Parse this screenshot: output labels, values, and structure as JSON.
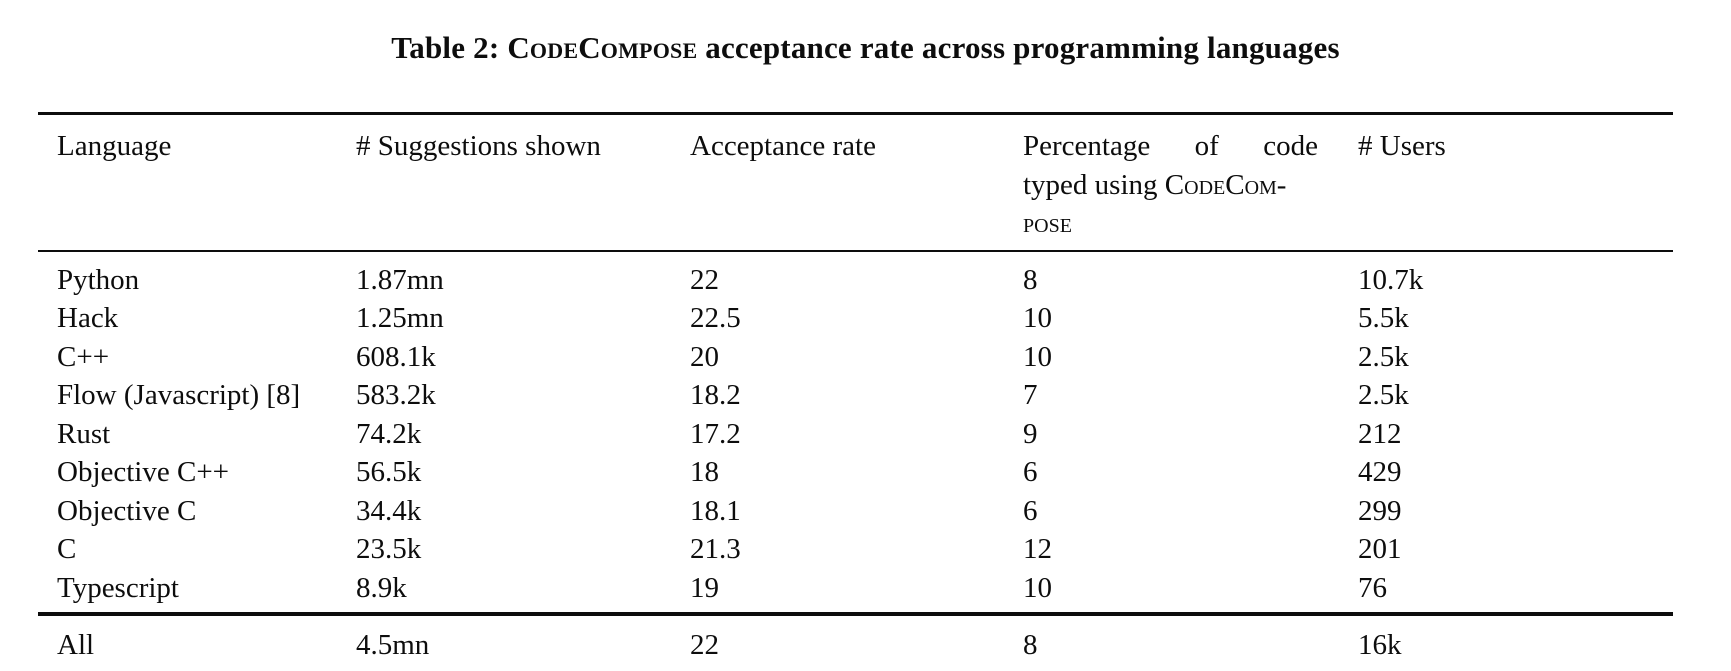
{
  "caption": {
    "prefix": "Table 2: ",
    "brand": "CodeCompose",
    "suffix": " acceptance rate across programming languages"
  },
  "header": {
    "language": "Language",
    "suggestions": "# Suggestions shown",
    "acceptance": "Acceptance rate",
    "percentage_line1": "Percentage of code",
    "percentage_line2_text": "typed using ",
    "percentage_line2_brand": "CodeCom-",
    "percentage_line3_brand": "pose",
    "users": "# Users"
  },
  "table": {
    "rows": [
      [
        "Python",
        "1.87mn",
        "22",
        "8",
        "10.7k"
      ],
      [
        "Hack",
        "1.25mn",
        "22.5",
        "10",
        "5.5k"
      ],
      [
        "C++",
        "608.1k",
        "20",
        "10",
        "2.5k"
      ],
      [
        "Flow (Javascript) [8]",
        "583.2k",
        "18.2",
        "7",
        "2.5k"
      ],
      [
        "Rust",
        "74.2k",
        "17.2",
        "9",
        "212"
      ],
      [
        "Objective C++",
        "56.5k",
        "18",
        "6",
        "429"
      ],
      [
        "Objective C",
        "34.4k",
        "18.1",
        "6",
        "299"
      ],
      [
        "C",
        "23.5k",
        "21.3",
        "12",
        "201"
      ],
      [
        "Typescript",
        "8.9k",
        "19",
        "10",
        "76"
      ]
    ],
    "total": [
      "All",
      "4.5mn",
      "22",
      "8",
      "16k"
    ]
  },
  "chart_data": {
    "type": "table",
    "title": "Table 2: CodeCompose acceptance rate across programming languages",
    "columns": [
      "Language",
      "# Suggestions shown",
      "Acceptance rate",
      "Percentage of code typed using CodeCompose",
      "# Users"
    ],
    "rows": [
      {
        "language": "Python",
        "suggestions_shown": "1.87mn",
        "acceptance_rate": 22,
        "pct_code_typed": 8,
        "users": "10.7k"
      },
      {
        "language": "Hack",
        "suggestions_shown": "1.25mn",
        "acceptance_rate": 22.5,
        "pct_code_typed": 10,
        "users": "5.5k"
      },
      {
        "language": "C++",
        "suggestions_shown": "608.1k",
        "acceptance_rate": 20,
        "pct_code_typed": 10,
        "users": "2.5k"
      },
      {
        "language": "Flow (Javascript) [8]",
        "suggestions_shown": "583.2k",
        "acceptance_rate": 18.2,
        "pct_code_typed": 7,
        "users": "2.5k"
      },
      {
        "language": "Rust",
        "suggestions_shown": "74.2k",
        "acceptance_rate": 17.2,
        "pct_code_typed": 9,
        "users": "212"
      },
      {
        "language": "Objective C++",
        "suggestions_shown": "56.5k",
        "acceptance_rate": 18,
        "pct_code_typed": 6,
        "users": "429"
      },
      {
        "language": "Objective C",
        "suggestions_shown": "34.4k",
        "acceptance_rate": 18.1,
        "pct_code_typed": 6,
        "users": "299"
      },
      {
        "language": "C",
        "suggestions_shown": "23.5k",
        "acceptance_rate": 21.3,
        "pct_code_typed": 12,
        "users": "201"
      },
      {
        "language": "Typescript",
        "suggestions_shown": "8.9k",
        "acceptance_rate": 19,
        "pct_code_typed": 10,
        "users": "76"
      }
    ],
    "total_row": {
      "language": "All",
      "suggestions_shown": "4.5mn",
      "acceptance_rate": 22,
      "pct_code_typed": 8,
      "users": "16k"
    }
  }
}
